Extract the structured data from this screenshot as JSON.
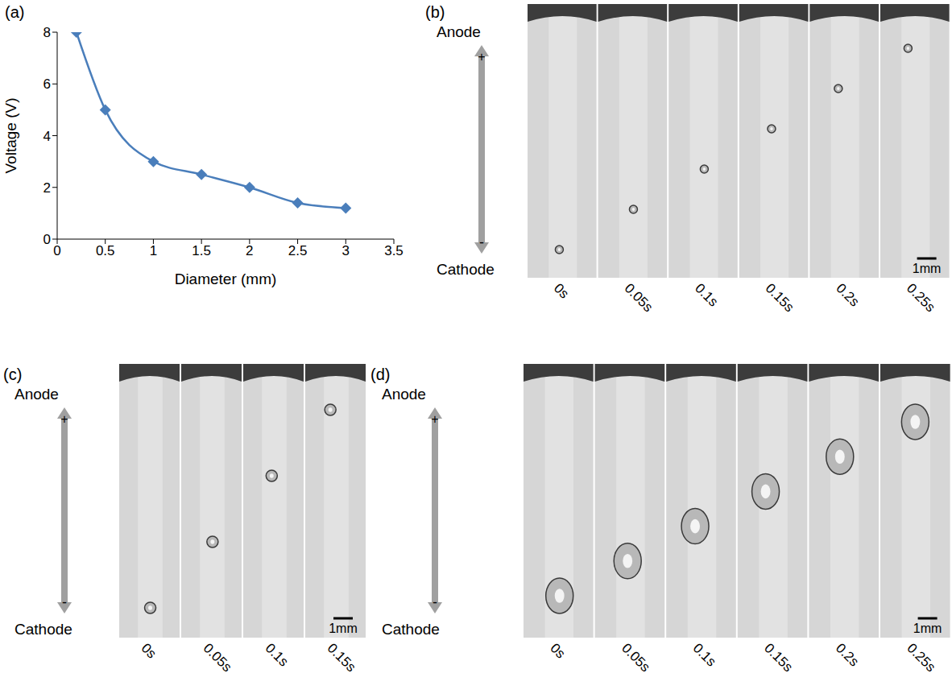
{
  "chart_data": {
    "type": "line",
    "panel_label": "(a)",
    "x_label": "Diameter (mm)",
    "y_label": "Voltage (V)",
    "x": [
      0.2,
      0.5,
      1,
      1.5,
      2,
      2.5,
      3
    ],
    "values": [
      8,
      5,
      3,
      2.5,
      2,
      1.4,
      1.2
    ],
    "color": "#4a7ebb",
    "marker": "diamond",
    "xlim": [
      0,
      3.5
    ],
    "xticks": [
      0,
      0.5,
      1,
      1.5,
      2,
      2.5,
      3,
      3.5
    ],
    "ylim": [
      0,
      8
    ],
    "yticks": [
      0,
      2,
      4,
      6,
      8
    ],
    "grid": false
  },
  "image_panels": [
    {
      "label": "(b)",
      "anode": "Anode",
      "anode_sign": "+",
      "cathode": "Cathode",
      "cathode_sign": "-",
      "scale_bar": "1mm",
      "frames": [
        "0s",
        "0.05s",
        "0.1s",
        "0.15s",
        "0.2s",
        "0.25s"
      ]
    },
    {
      "label": "(c)",
      "anode": "Anode",
      "anode_sign": "+",
      "cathode": "Cathode",
      "cathode_sign": "-",
      "scale_bar": "1mm",
      "frames": [
        "0s",
        "0.05s",
        "0.1s",
        "0.15s"
      ]
    },
    {
      "label": "(d)",
      "anode": "Anode",
      "anode_sign": "+",
      "cathode": "Cathode",
      "cathode_sign": "-",
      "scale_bar": "1mm",
      "frames": [
        "0s",
        "0.05s",
        "0.1s",
        "0.15s",
        "0.2s",
        "0.25s"
      ]
    }
  ]
}
